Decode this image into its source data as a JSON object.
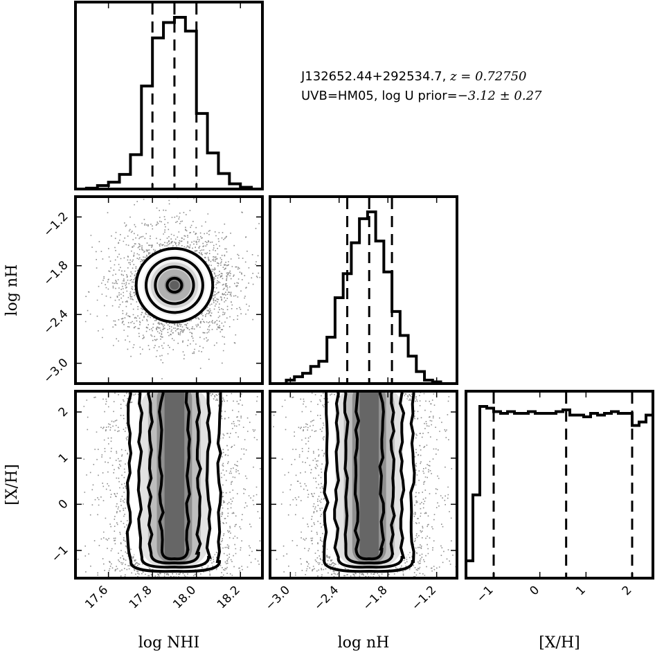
{
  "annotation": {
    "line1_name": "J132652.44+292534.7, ",
    "line1_z": "z = 0.72750",
    "line2_prefix": "UVB=HM05, log U prior=",
    "line2_value": "−3.12 ± 0.27"
  },
  "colors": {
    "axes": "#000000",
    "points": "#000000",
    "background": "#ffffff"
  },
  "chart_data": {
    "type": "corner",
    "title": "",
    "parameters": [
      {
        "name": "log_NHI",
        "label": "log N_HI",
        "display_label": "log NHI",
        "range": [
          17.45,
          18.3
        ],
        "ticks": [
          17.6,
          17.8,
          18.0,
          18.2
        ],
        "tick_labels": [
          "17.6",
          "17.8",
          "18.0",
          "18.2"
        ],
        "quantiles": [
          17.8,
          17.9,
          18.0
        ]
      },
      {
        "name": "log_nH",
        "label": "log n_H",
        "display_label": "log nH",
        "range": [
          -3.25,
          -0.95
        ],
        "ticks": [
          -3.0,
          -2.4,
          -1.8,
          -1.2
        ],
        "tick_labels": [
          "−3.0",
          "−2.4",
          "−1.8",
          "−1.2"
        ],
        "quantiles": [
          -2.3,
          -2.03,
          -1.75
        ]
      },
      {
        "name": "X_H",
        "label": "[X/H]",
        "display_label": "[X/H]",
        "range": [
          -1.6,
          2.45
        ],
        "ticks": [
          -1,
          0,
          1,
          2
        ],
        "tick_labels": [
          "−1",
          "0",
          "1",
          "2"
        ],
        "quantiles": [
          -1.0,
          0.57,
          2.0
        ]
      }
    ],
    "histograms": [
      {
        "param": "log_NHI",
        "bin_edges": [
          17.45,
          17.5,
          17.55,
          17.6,
          17.65,
          17.7,
          17.75,
          17.8,
          17.85,
          17.9,
          17.95,
          18.0,
          18.05,
          18.1,
          18.15,
          18.2,
          18.25,
          18.3
        ],
        "counts": [
          0.0,
          0.005,
          0.02,
          0.04,
          0.085,
          0.2,
          0.6,
          0.88,
          0.97,
          1.0,
          0.92,
          0.44,
          0.21,
          0.09,
          0.03,
          0.01,
          0.0
        ]
      },
      {
        "param": "log_nH",
        "bin_edges": [
          -3.25,
          -3.15,
          -3.05,
          -2.95,
          -2.85,
          -2.75,
          -2.65,
          -2.55,
          -2.45,
          -2.35,
          -2.25,
          -2.15,
          -2.05,
          -1.95,
          -1.85,
          -1.75,
          -1.65,
          -1.55,
          -1.45,
          -1.35,
          -1.25,
          -1.15,
          -1.05,
          -0.95
        ],
        "counts": [
          0.0,
          0.0,
          0.02,
          0.04,
          0.06,
          0.1,
          0.13,
          0.27,
          0.5,
          0.64,
          0.82,
          0.96,
          1.0,
          0.83,
          0.65,
          0.42,
          0.28,
          0.16,
          0.07,
          0.02,
          0.01,
          0.0,
          0.0
        ]
      },
      {
        "param": "X_H",
        "bin_edges": [
          -1.6,
          -1.45,
          -1.3,
          -1.15,
          -1.0,
          -0.85,
          -0.7,
          -0.55,
          -0.4,
          -0.25,
          -0.1,
          0.05,
          0.2,
          0.35,
          0.5,
          0.65,
          0.8,
          0.95,
          1.1,
          1.25,
          1.4,
          1.55,
          1.7,
          1.85,
          2.0,
          2.15,
          2.3,
          2.45
        ],
        "counts": [
          0.1,
          0.48,
          0.99,
          0.98,
          0.96,
          0.95,
          0.96,
          0.95,
          0.95,
          0.96,
          0.95,
          0.95,
          0.95,
          0.96,
          0.97,
          0.94,
          0.94,
          0.93,
          0.95,
          0.94,
          0.95,
          0.96,
          0.95,
          0.95,
          0.88,
          0.9,
          0.94
        ]
      }
    ],
    "scatter_2d": [
      {
        "x": "log_NHI",
        "y": "log_nH",
        "center": [
          17.9,
          -2.04
        ],
        "sigma": [
          0.1,
          0.26
        ],
        "bounded_y": null
      },
      {
        "x": "log_NHI",
        "y": "X_H",
        "center": [
          17.9,
          0.55
        ],
        "sigma": [
          0.1,
          null
        ],
        "bounded_y": [
          -1.45,
          2.45
        ]
      },
      {
        "x": "log_nH",
        "y": "X_H",
        "center": [
          -2.03,
          0.55
        ],
        "sigma": [
          0.26,
          null
        ],
        "bounded_y": [
          -1.45,
          2.45
        ]
      }
    ]
  }
}
